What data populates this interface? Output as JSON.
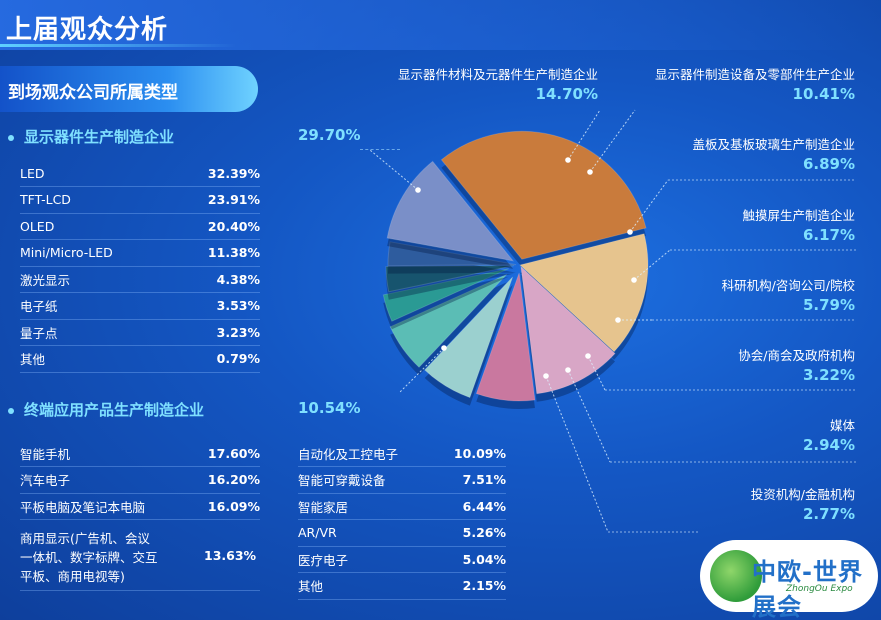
{
  "page_title": "上届观众分析",
  "section_title": "到场观众公司所属类型",
  "display_group": {
    "name": "显示器件生产制造企业",
    "total": "29.70%",
    "items": [
      {
        "label": "LED",
        "value": "32.39%"
      },
      {
        "label": "TFT-LCD",
        "value": "23.91%"
      },
      {
        "label": "OLED",
        "value": "20.40%"
      },
      {
        "label": "Mini/Micro-LED",
        "value": "11.38%"
      },
      {
        "label": "激光显示",
        "value": "4.38%"
      },
      {
        "label": "电子纸",
        "value": "3.53%"
      },
      {
        "label": "量子点",
        "value": "3.23%"
      },
      {
        "label": "其他",
        "value": "0.79%"
      }
    ]
  },
  "terminal_group": {
    "name": "终端应用产品生产制造企业",
    "total": "10.54%",
    "left_items": [
      {
        "label": "智能手机",
        "value": "17.60%"
      },
      {
        "label": "汽车电子",
        "value": "16.20%"
      },
      {
        "label": "平板电脑及笔记本电脑",
        "value": "16.09%"
      }
    ],
    "commercial": {
      "line1": "商用显示(广告机、会议",
      "line2": "一体机、数字标牌、交互",
      "line3": "平板、商用电视等)",
      "value": "13.63%"
    },
    "right_items": [
      {
        "label": "自动化及工控电子",
        "value": "10.09%"
      },
      {
        "label": "智能可穿戴设备",
        "value": "7.51%"
      },
      {
        "label": "智能家居",
        "value": "6.44%"
      },
      {
        "label": "AR/VR",
        "value": "5.26%"
      },
      {
        "label": "医疗电子",
        "value": "5.04%"
      },
      {
        "label": "其他",
        "value": "2.15%"
      }
    ]
  },
  "chart_data": {
    "type": "pie",
    "slices": [
      {
        "name": "显示器件生产制造企业",
        "value": 29.7,
        "label": "29.70%",
        "color": "#c97b3c"
      },
      {
        "name": "显示器件材料及元器件生产制造企业",
        "value": 14.7,
        "label": "14.70%",
        "color": "#e6c48e"
      },
      {
        "name": "显示器件制造设备及零部件生产企业",
        "value": 10.41,
        "label": "10.41%",
        "color": "#d8a6c6"
      },
      {
        "name": "盖板及基板玻璃生产制造企业",
        "value": 6.89,
        "label": "6.89%",
        "color": "#c9789f"
      },
      {
        "name": "触摸屏生产制造企业",
        "value": 6.17,
        "label": "6.17%",
        "color": "#9bd0cf"
      },
      {
        "name": "科研机构/咨询公司/院校",
        "value": 5.79,
        "label": "5.79%",
        "color": "#5bbdb5"
      },
      {
        "name": "协会/商会及政府机构",
        "value": 3.22,
        "label": "3.22%",
        "color": "#2a9a94"
      },
      {
        "name": "媒体",
        "value": 2.94,
        "label": "2.94%",
        "color": "#17546e"
      },
      {
        "name": "投资机构/金融机构",
        "value": 2.77,
        "label": "2.77%",
        "color": "#2e5c9e"
      },
      {
        "name": "终端应用产品生产制造企业",
        "value": 10.54,
        "label": "10.54%",
        "color": "#7a8fc8"
      }
    ]
  },
  "logo": {
    "text": "中欧-世界展会",
    "sub": "ZhongOu Expo"
  }
}
